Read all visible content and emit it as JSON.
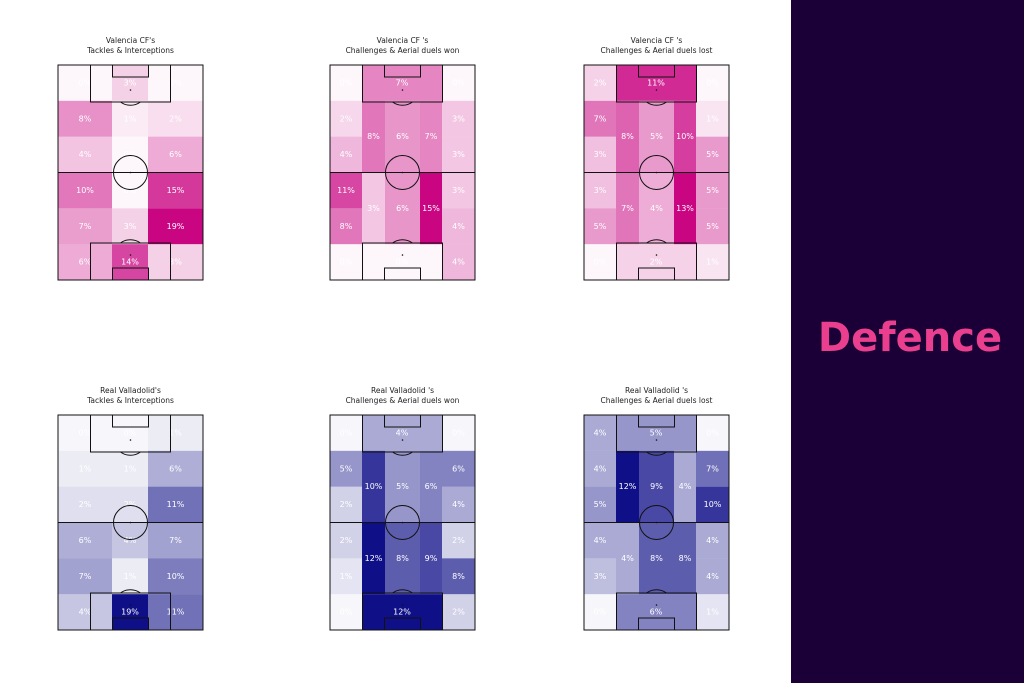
{
  "panels": [
    {
      "team": "Valencia CF's",
      "metric": "Tackles & Interceptions",
      "layout": "tackles",
      "color": "#c8007f",
      "cells": [
        {
          "value": 0,
          "label": "0%"
        },
        {
          "value": 3,
          "label": "3%"
        },
        {
          "value": 0,
          "label": "0%"
        },
        {
          "value": 8,
          "label": "8%"
        },
        {
          "value": 1,
          "label": "1%"
        },
        {
          "value": 2,
          "label": "2%"
        },
        {
          "value": 4,
          "label": "4%"
        },
        {
          "value": 0,
          "label": "0%"
        },
        {
          "value": 6,
          "label": "6%"
        },
        {
          "value": 10,
          "label": "10%"
        },
        {
          "value": 0,
          "label": "0%"
        },
        {
          "value": 15,
          "label": "15%"
        },
        {
          "value": 7,
          "label": "7%"
        },
        {
          "value": 3,
          "label": "3%"
        },
        {
          "value": 19,
          "label": "19%"
        },
        {
          "value": 6,
          "label": "6%"
        },
        {
          "value": 14,
          "label": "14%"
        },
        {
          "value": 3,
          "label": "3%"
        }
      ]
    },
    {
      "team": "Valencia CF 's",
      "metric": "Challenges & Aerial duels won",
      "layout": "challenges",
      "color": "#c8007f",
      "cells": [
        {
          "value": 0,
          "label": "0%"
        },
        {
          "value": 7,
          "label": "7%"
        },
        {
          "value": 0,
          "label": "0%"
        },
        {
          "value": 2,
          "label": "2%"
        },
        {
          "value": 3,
          "label": "3%"
        },
        {
          "value": 4,
          "label": "4%"
        },
        {
          "value": 3,
          "label": "3%"
        },
        {
          "value": 8,
          "label": "8%"
        },
        {
          "value": 6,
          "label": "6%"
        },
        {
          "value": 7,
          "label": "7%"
        },
        {
          "value": 11,
          "label": "11%"
        },
        {
          "value": 3,
          "label": "3%"
        },
        {
          "value": 8,
          "label": "8%"
        },
        {
          "value": 4,
          "label": "4%"
        },
        {
          "value": 3,
          "label": "3%"
        },
        {
          "value": 6,
          "label": "6%"
        },
        {
          "value": 15,
          "label": "15%"
        },
        {
          "value": 0,
          "label": "0%"
        },
        {
          "value": 0,
          "label": "0%"
        },
        {
          "value": 4,
          "label": "4%"
        }
      ]
    },
    {
      "team": "Valencia CF 's",
      "metric": "Challenges & Aerial duels lost",
      "layout": "challenges",
      "color": "#c8007f",
      "cells": [
        {
          "value": 2,
          "label": "2%"
        },
        {
          "value": 11,
          "label": "11%"
        },
        {
          "value": 0,
          "label": "0%"
        },
        {
          "value": 7,
          "label": "7%"
        },
        {
          "value": 1,
          "label": "1%"
        },
        {
          "value": 3,
          "label": "3%"
        },
        {
          "value": 5,
          "label": "5%"
        },
        {
          "value": 8,
          "label": "8%"
        },
        {
          "value": 5,
          "label": "5%"
        },
        {
          "value": 10,
          "label": "10%"
        },
        {
          "value": 3,
          "label": "3%"
        },
        {
          "value": 5,
          "label": "5%"
        },
        {
          "value": 5,
          "label": "5%"
        },
        {
          "value": 5,
          "label": "5%"
        },
        {
          "value": 7,
          "label": "7%"
        },
        {
          "value": 4,
          "label": "4%"
        },
        {
          "value": 13,
          "label": "13%"
        },
        {
          "value": 0,
          "label": "0%"
        },
        {
          "value": 2,
          "label": "2%"
        },
        {
          "value": 1,
          "label": "1%"
        }
      ]
    },
    {
      "team": "Real Valladolid's",
      "metric": "Tackles & Interceptions",
      "layout": "tackles",
      "color": "#0a0a85",
      "cells": [
        {
          "value": 0,
          "label": "0%"
        },
        {
          "value": 0,
          "label": "0%"
        },
        {
          "value": 1,
          "label": "1%"
        },
        {
          "value": 1,
          "label": "1%"
        },
        {
          "value": 1,
          "label": "1%"
        },
        {
          "value": 6,
          "label": "6%"
        },
        {
          "value": 2,
          "label": "2%"
        },
        {
          "value": 2,
          "label": "2%"
        },
        {
          "value": 11,
          "label": "11%"
        },
        {
          "value": 6,
          "label": "6%"
        },
        {
          "value": 4,
          "label": "4%"
        },
        {
          "value": 7,
          "label": "7%"
        },
        {
          "value": 7,
          "label": "7%"
        },
        {
          "value": 1,
          "label": "1%"
        },
        {
          "value": 10,
          "label": "10%"
        },
        {
          "value": 4,
          "label": "4%"
        },
        {
          "value": 19,
          "label": "19%"
        },
        {
          "value": 11,
          "label": "11%"
        }
      ]
    },
    {
      "team": "Real Valladolid 's",
      "metric": "Challenges & Aerial duels won",
      "layout": "challenges",
      "color": "#0a0a85",
      "cells": [
        {
          "value": 0,
          "label": "0%"
        },
        {
          "value": 4,
          "label": "4%"
        },
        {
          "value": 0,
          "label": "0%"
        },
        {
          "value": 5,
          "label": "5%"
        },
        {
          "value": 6,
          "label": "6%"
        },
        {
          "value": 2,
          "label": "2%"
        },
        {
          "value": 4,
          "label": "4%"
        },
        {
          "value": 10,
          "label": "10%"
        },
        {
          "value": 5,
          "label": "5%"
        },
        {
          "value": 6,
          "label": "6%"
        },
        {
          "value": 2,
          "label": "2%"
        },
        {
          "value": 2,
          "label": "2%"
        },
        {
          "value": 1,
          "label": "1%"
        },
        {
          "value": 8,
          "label": "8%"
        },
        {
          "value": 12,
          "label": "12%"
        },
        {
          "value": 8,
          "label": "8%"
        },
        {
          "value": 9,
          "label": "9%"
        },
        {
          "value": 0,
          "label": "0%"
        },
        {
          "value": 12,
          "label": "12%"
        },
        {
          "value": 2,
          "label": "2%"
        }
      ]
    },
    {
      "team": "Real Valladolid 's",
      "metric": "Challenges & Aerial duels lost",
      "layout": "challenges",
      "color": "#0a0a85",
      "cells": [
        {
          "value": 4,
          "label": "4%"
        },
        {
          "value": 5,
          "label": "5%"
        },
        {
          "value": 0,
          "label": "0%"
        },
        {
          "value": 4,
          "label": "4%"
        },
        {
          "value": 7,
          "label": "7%"
        },
        {
          "value": 5,
          "label": "5%"
        },
        {
          "value": 10,
          "label": "10%"
        },
        {
          "value": 12,
          "label": "12%"
        },
        {
          "value": 9,
          "label": "9%"
        },
        {
          "value": 4,
          "label": "4%"
        },
        {
          "value": 4,
          "label": "4%"
        },
        {
          "value": 4,
          "label": "4%"
        },
        {
          "value": 3,
          "label": "3%"
        },
        {
          "value": 4,
          "label": "4%"
        },
        {
          "value": 4,
          "label": "4%"
        },
        {
          "value": 8,
          "label": "8%"
        },
        {
          "value": 8,
          "label": "8%"
        },
        {
          "value": 0,
          "label": "0%"
        },
        {
          "value": 6,
          "label": "6%"
        },
        {
          "value": 1,
          "label": "1%"
        }
      ]
    }
  ],
  "sidebar": {
    "heading": "Defence"
  }
}
